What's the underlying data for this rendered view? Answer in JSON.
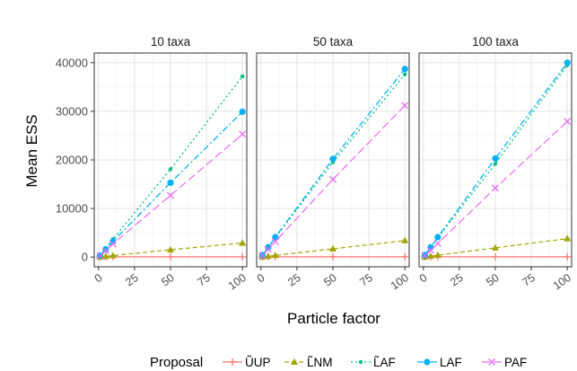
{
  "chart_data": {
    "type": "line",
    "xlabel": "Particle factor",
    "ylabel": "Mean ESS",
    "xlim": [
      -3,
      103
    ],
    "ylim": [
      -2000,
      42000
    ],
    "xticks": [
      0,
      25,
      50,
      75,
      100
    ],
    "xtick_labels": [
      "0",
      "25",
      "50",
      "75",
      "100"
    ],
    "yticks": [
      0,
      10000,
      20000,
      30000,
      40000
    ],
    "ytick_labels": [
      "0",
      "10000",
      "20000",
      "30000",
      "40000"
    ],
    "grid": true,
    "legend": {
      "title": "Proposal",
      "placement": "bottom",
      "entries": [
        "ŨUP",
        "L̃NM",
        "L̃AF",
        "LAF",
        "PAF"
      ]
    },
    "x": [
      1,
      5,
      10,
      50,
      100
    ],
    "panels": [
      {
        "title": "10 taxa",
        "series": [
          {
            "name": "ŨUP",
            "values": [
              40,
              50,
              60,
              60,
              60
            ]
          },
          {
            "name": "L̃NM",
            "values": [
              40,
              150,
              300,
              1500,
              2900
            ]
          },
          {
            "name": "L̃AF",
            "values": [
              400,
              1900,
              3700,
              18100,
              37200
            ]
          },
          {
            "name": "LAF",
            "values": [
              300,
              1600,
              3200,
              15300,
              29900
            ]
          },
          {
            "name": "PAF",
            "values": [
              250,
              1300,
              2700,
              12700,
              25300
            ]
          }
        ]
      },
      {
        "title": "50 taxa",
        "series": [
          {
            "name": "ŨUP",
            "values": [
              40,
              50,
              60,
              60,
              60
            ]
          },
          {
            "name": "L̃NM",
            "values": [
              40,
              170,
              350,
              1700,
              3400
            ]
          },
          {
            "name": "L̃AF",
            "values": [
              400,
              2000,
              4000,
              19500,
              37600
            ]
          },
          {
            "name": "LAF",
            "values": [
              400,
              2000,
              4100,
              20200,
              38700
            ]
          },
          {
            "name": "PAF",
            "values": [
              300,
              1600,
              3200,
              16000,
              31200
            ]
          }
        ]
      },
      {
        "title": "100 taxa",
        "series": [
          {
            "name": "ŨUP",
            "values": [
              40,
              50,
              60,
              60,
              60
            ]
          },
          {
            "name": "L̃NM",
            "values": [
              40,
              190,
              380,
              1900,
              3800
            ]
          },
          {
            "name": "L̃AF",
            "values": [
              400,
              2000,
              4000,
              19200,
              39500
            ]
          },
          {
            "name": "LAF",
            "values": [
              400,
              2000,
              4100,
              20300,
              40000
            ]
          },
          {
            "name": "PAF",
            "values": [
              300,
              1400,
              2800,
              14200,
              27900
            ]
          }
        ]
      }
    ]
  },
  "colors": {
    "ŨUP": "#F8766D",
    "L̃NM": "#A3A500",
    "L̃AF": "#00BF7D",
    "LAF": "#00B0F6",
    "PAF": "#E76BF3"
  }
}
